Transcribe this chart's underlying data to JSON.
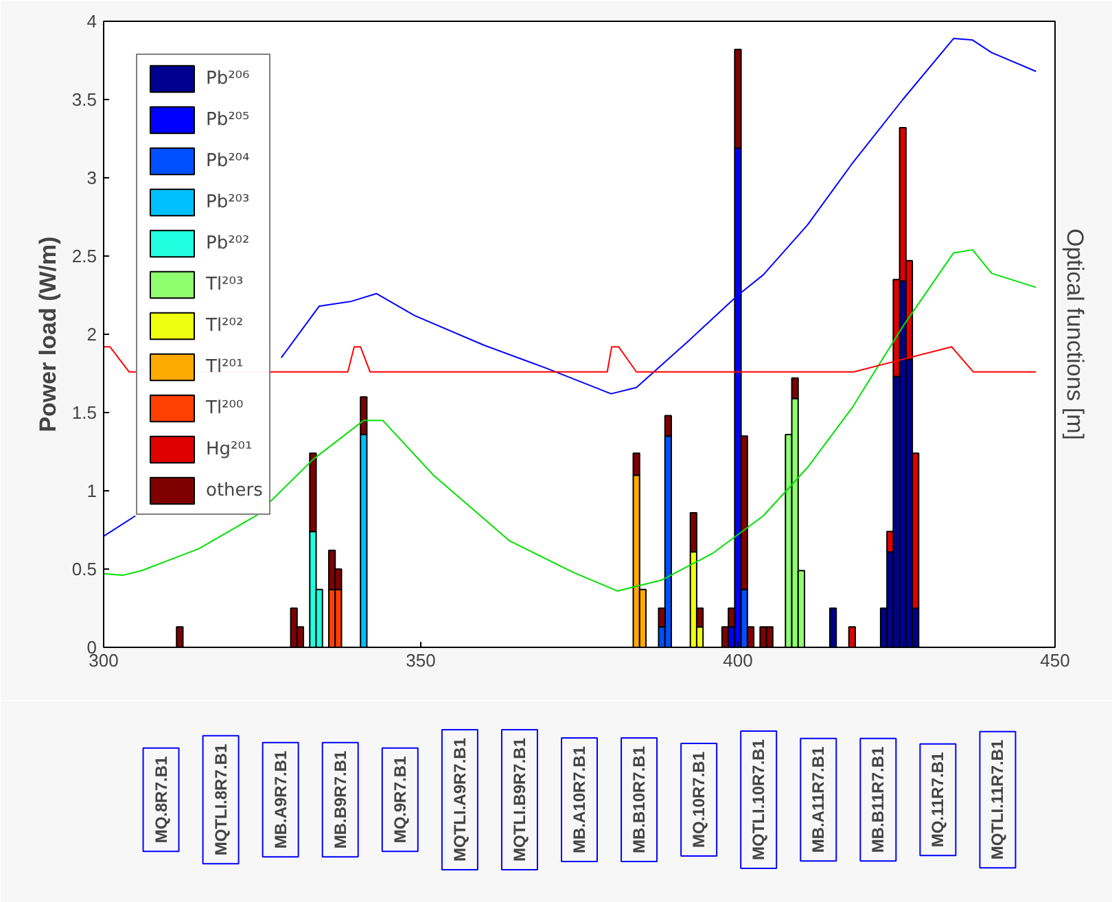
{
  "chart_data": {
    "type": "bar",
    "stacked": true,
    "ylabel": "Power load (W/m)",
    "y2label": "Optical functions [m]",
    "x": [
      312,
      330,
      331,
      333,
      334,
      336,
      337,
      341,
      384,
      385,
      388,
      389,
      393,
      394,
      398,
      399,
      400,
      401,
      402,
      404,
      405,
      408,
      409,
      410,
      415,
      418,
      423,
      424,
      425,
      426,
      427,
      428
    ],
    "xlim": [
      300,
      450
    ],
    "xticks": [
      300,
      350,
      400,
      450
    ],
    "ylim": [
      0,
      4
    ],
    "yticks": [
      0,
      0.5,
      1,
      1.5,
      2,
      2.5,
      3,
      3.5,
      4
    ],
    "legend": "top left",
    "series": [
      {
        "name": "Pb²⁰⁶",
        "color": "#00008f",
        "values": [
          null,
          null,
          null,
          null,
          null,
          null,
          null,
          null,
          null,
          null,
          null,
          null,
          null,
          null,
          null,
          null,
          null,
          null,
          null,
          null,
          null,
          null,
          null,
          null,
          0.25,
          null,
          0.25,
          0.61,
          1.73,
          2.34,
          1.84,
          0.25
        ]
      },
      {
        "name": "Pb²⁰⁵",
        "color": "#0000ff",
        "values": [
          null,
          null,
          null,
          null,
          null,
          null,
          null,
          null,
          null,
          null,
          null,
          null,
          null,
          null,
          null,
          0.13,
          3.19,
          null,
          null,
          null,
          null,
          null,
          null,
          null,
          null,
          null,
          null,
          null,
          null,
          null,
          null,
          null
        ]
      },
      {
        "name": "Pb²⁰⁴",
        "color": "#0050ff",
        "values": [
          null,
          null,
          null,
          null,
          null,
          null,
          null,
          null,
          null,
          null,
          0.13,
          1.35,
          null,
          null,
          null,
          null,
          null,
          0.37,
          null,
          null,
          null,
          null,
          null,
          null,
          null,
          null,
          null,
          null,
          null,
          null,
          null,
          null
        ]
      },
      {
        "name": "Pb²⁰³",
        "color": "#00bfff",
        "values": [
          null,
          null,
          null,
          null,
          null,
          null,
          null,
          1.36,
          null,
          null,
          null,
          null,
          null,
          null,
          null,
          null,
          null,
          null,
          null,
          null,
          null,
          null,
          null,
          null,
          null,
          null,
          null,
          null,
          null,
          null,
          null,
          null
        ]
      },
      {
        "name": "Pb²⁰²",
        "color": "#20ffdf",
        "values": [
          null,
          null,
          null,
          0.74,
          0.37,
          null,
          null,
          null,
          null,
          null,
          null,
          null,
          null,
          null,
          null,
          null,
          null,
          null,
          null,
          null,
          null,
          null,
          null,
          null,
          null,
          null,
          null,
          null,
          null,
          null,
          null,
          null
        ]
      },
      {
        "name": "Tl²⁰³",
        "color": "#8fff70",
        "values": [
          null,
          null,
          null,
          null,
          null,
          null,
          null,
          null,
          null,
          null,
          null,
          null,
          null,
          null,
          null,
          null,
          null,
          null,
          null,
          null,
          null,
          1.36,
          1.59,
          0.49,
          null,
          null,
          null,
          null,
          null,
          null,
          null,
          null
        ]
      },
      {
        "name": "Tl²⁰²",
        "color": "#efff10",
        "values": [
          null,
          null,
          null,
          null,
          null,
          null,
          null,
          null,
          null,
          null,
          null,
          null,
          0.61,
          0.13,
          null,
          null,
          null,
          null,
          null,
          null,
          null,
          null,
          null,
          null,
          null,
          null,
          null,
          null,
          null,
          null,
          null,
          null
        ]
      },
      {
        "name": "Tl²⁰¹",
        "color": "#ffaa00",
        "values": [
          null,
          null,
          null,
          null,
          null,
          null,
          null,
          null,
          1.1,
          0.37,
          null,
          null,
          null,
          null,
          null,
          null,
          null,
          null,
          null,
          null,
          null,
          null,
          null,
          null,
          null,
          null,
          null,
          null,
          null,
          null,
          null,
          null
        ]
      },
      {
        "name": "Tl²⁰⁰",
        "color": "#ff4000",
        "values": [
          null,
          null,
          null,
          null,
          null,
          0.37,
          0.37,
          null,
          null,
          null,
          null,
          null,
          null,
          null,
          null,
          null,
          null,
          null,
          null,
          null,
          null,
          null,
          null,
          null,
          null,
          null,
          null,
          null,
          null,
          null,
          null,
          null
        ]
      },
      {
        "name": "Hg²⁰¹",
        "color": "#df0000",
        "values": [
          null,
          null,
          null,
          null,
          null,
          null,
          null,
          null,
          null,
          null,
          null,
          null,
          null,
          null,
          null,
          null,
          null,
          null,
          null,
          null,
          null,
          null,
          null,
          null,
          null,
          0.13,
          null,
          0.13,
          0.62,
          0.98,
          0.63,
          0.99
        ]
      },
      {
        "name": "others",
        "color": "#800000",
        "values": [
          0.13,
          0.25,
          0.13,
          0.5,
          null,
          0.25,
          0.13,
          0.24,
          0.14,
          null,
          0.12,
          0.13,
          0.25,
          0.12,
          0.13,
          0.12,
          0.63,
          0.98,
          0.13,
          0.13,
          0.13,
          null,
          0.13,
          null,
          null,
          null,
          null,
          null,
          null,
          null,
          null,
          null
        ]
      },
      {
        "type": "line",
        "color": "#0000ff",
        "x": [
          300,
          305,
          312,
          321,
          328,
          334,
          339,
          343,
          349,
          360,
          370,
          380,
          384,
          392,
          400,
          404,
          411,
          418,
          426,
          434,
          437,
          440,
          447
        ],
        "values": [
          0.71,
          0.84,
          null,
          null,
          1.85,
          2.18,
          2.21,
          2.26,
          2.12,
          1.93,
          1.78,
          1.62,
          1.66,
          1.95,
          2.25,
          2.38,
          2.7,
          3.09,
          3.5,
          3.89,
          3.88,
          3.8,
          3.68
        ]
      },
      {
        "type": "line",
        "color": "#00e000",
        "x": [
          300,
          303,
          306,
          315,
          324,
          333,
          341,
          344,
          352,
          364,
          374,
          381,
          388,
          396,
          404,
          411,
          418,
          426,
          434,
          437,
          440,
          447
        ],
        "values": [
          0.47,
          0.46,
          0.49,
          0.63,
          0.84,
          1.2,
          1.45,
          1.45,
          1.1,
          0.68,
          0.48,
          0.36,
          0.43,
          0.6,
          0.84,
          1.15,
          1.53,
          2.05,
          2.52,
          2.54,
          2.39,
          2.3
        ]
      },
      {
        "type": "line",
        "color": "#ff0000",
        "x": [
          300,
          301,
          304,
          338.5,
          339.5,
          340.5,
          342,
          379.4,
          380.1,
          381.2,
          384,
          418.3,
          433.7,
          437.1,
          447
        ],
        "values": [
          1.92,
          1.92,
          1.76,
          1.76,
          1.92,
          1.92,
          1.76,
          1.76,
          1.92,
          1.92,
          1.76,
          1.76,
          1.92,
          1.76,
          1.76
        ]
      }
    ],
    "annotations": [
      "MQ.8R7.B1",
      "MQTLI.8R7.B1",
      "MB.A9R7.B1",
      "MB.B9R7.B1",
      "MQ.9R7.B1",
      "MQTLI.A9R7.B1",
      "MQTLI.B9R7.B1",
      "MB.A10R7.B1",
      "MB.B10R7.B1",
      "MQ.10R7.B1",
      "MQTLI.10R7.B1",
      "MB.A11R7.B1",
      "MB.B11R7.B1",
      "MQ.11R7.B1",
      "MQTLI.11R7.B1"
    ]
  }
}
